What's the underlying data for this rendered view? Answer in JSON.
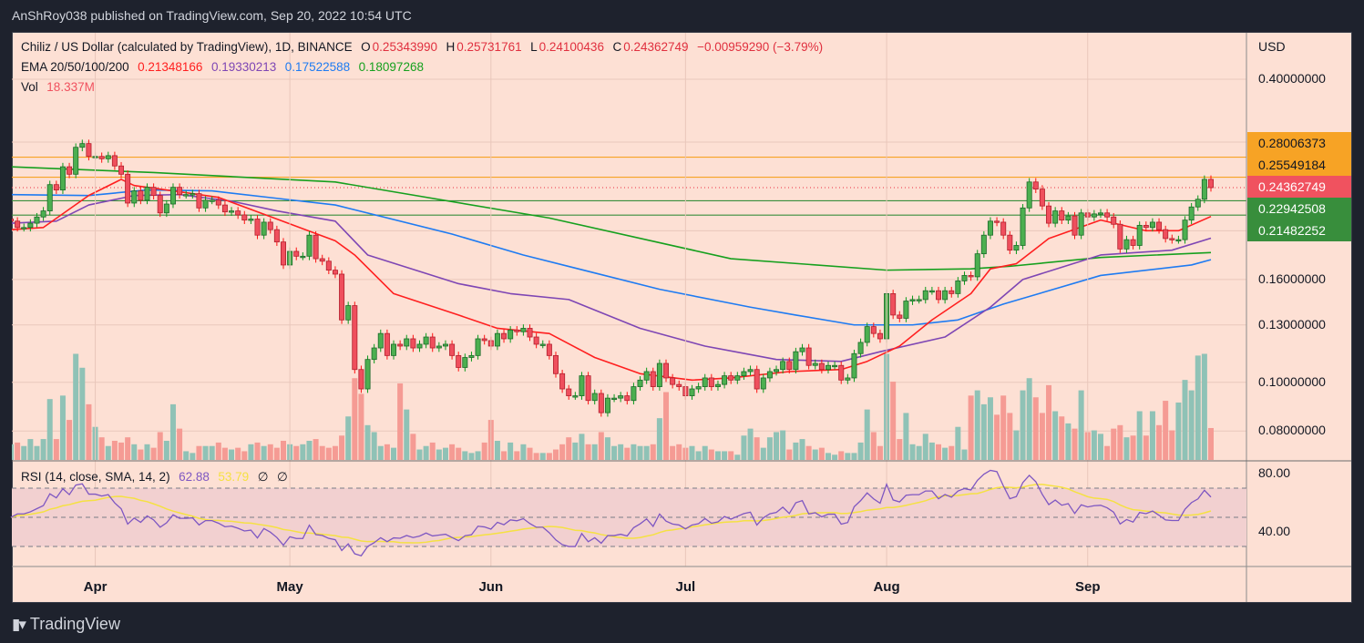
{
  "header": {
    "publisher_line": "AnShRoy038 published on TradingView.com, Sep 20, 2022 10:54 UTC"
  },
  "legend": {
    "symbol": "Chiliz / US Dollar (calculated by TradingView), 1D, BINANCE",
    "o_label": "O",
    "o": "0.25343990",
    "h_label": "H",
    "h": "0.25731761",
    "l_label": "L",
    "l": "0.24100436",
    "c_label": "C",
    "c": "0.24362749",
    "change": "−0.00959290 (−3.79%)",
    "ema_label": "EMA 20/50/100/200",
    "ema_values": [
      "0.21348166",
      "0.19330213",
      "0.17522588",
      "0.18097268"
    ],
    "vol_label": "Vol",
    "vol_value": "18.337M"
  },
  "rsi_legend": {
    "label": "RSI (14, close, SMA, 14, 2)",
    "rsi": "62.88",
    "sma": "53.79",
    "extra1": "∅",
    "extra2": "∅"
  },
  "price_axis": {
    "currency": "USD",
    "ticks": [
      "0.40000000",
      "0.16000000",
      "0.13000000",
      "0.10000000",
      "0.08000000"
    ]
  },
  "price_labels": [
    {
      "value": "0.28006373",
      "bg": "#f7a325",
      "fg": "#131722"
    },
    {
      "value": "0.25549184",
      "bg": "#f7a325",
      "fg": "#131722"
    },
    {
      "value": "0.24362749",
      "bg": "#f0525f",
      "fg": "#ffffff"
    },
    {
      "value": "0.22942508",
      "bg": "#388e3c",
      "fg": "#ffffff"
    },
    {
      "value": "0.21482252",
      "bg": "#388e3c",
      "fg": "#ffffff"
    }
  ],
  "rsi_axis": {
    "ticks": [
      "80.00",
      "40.00"
    ]
  },
  "time_axis": [
    {
      "label": "Apr",
      "day_index": 13
    },
    {
      "label": "May",
      "day_index": 43
    },
    {
      "label": "Jun",
      "day_index": 74
    },
    {
      "label": "Jul",
      "day_index": 104
    },
    {
      "label": "Aug",
      "day_index": 135
    },
    {
      "label": "Sep",
      "day_index": 166
    }
  ],
  "footer": {
    "brand": "TradingView",
    "logo_glyph": "17"
  },
  "colors": {
    "up": "#4caf50",
    "down": "#ef4f5d",
    "up_vol": "#8fc2b6",
    "down_vol": "#f59b94",
    "ema20": "#ff1f1f",
    "ema50": "#7e46b4",
    "ema100": "#1e7bf2",
    "ema200": "#16a01e",
    "rsi": "#7e57c2",
    "rsi_sma": "#f5e142"
  },
  "chart_data": {
    "type": "candlestick",
    "title": "Chiliz / US Dollar, 1D, BINANCE",
    "yscale": "log",
    "ylim": [
      0.0698,
      0.497
    ],
    "closes": [
      0.209,
      0.203,
      0.203,
      0.207,
      0.213,
      0.219,
      0.247,
      0.241,
      0.268,
      0.259,
      0.293,
      0.298,
      0.281,
      0.281,
      0.278,
      0.282,
      0.269,
      0.259,
      0.227,
      0.24,
      0.23,
      0.244,
      0.235,
      0.217,
      0.226,
      0.244,
      0.236,
      0.236,
      0.237,
      0.222,
      0.23,
      0.23,
      0.225,
      0.218,
      0.219,
      0.215,
      0.21,
      0.211,
      0.196,
      0.208,
      0.201,
      0.19,
      0.171,
      0.182,
      0.178,
      0.178,
      0.196,
      0.176,
      0.174,
      0.167,
      0.164,
      0.133,
      0.142,
      0.106,
      0.097,
      0.111,
      0.117,
      0.125,
      0.113,
      0.119,
      0.118,
      0.122,
      0.117,
      0.119,
      0.123,
      0.117,
      0.118,
      0.119,
      0.113,
      0.107,
      0.112,
      0.113,
      0.122,
      0.121,
      0.118,
      0.125,
      0.122,
      0.127,
      0.126,
      0.128,
      0.123,
      0.119,
      0.119,
      0.113,
      0.104,
      0.097,
      0.094,
      0.094,
      0.103,
      0.092,
      0.095,
      0.087,
      0.093,
      0.093,
      0.094,
      0.092,
      0.098,
      0.101,
      0.105,
      0.098,
      0.109,
      0.102,
      0.099,
      0.098,
      0.094,
      0.097,
      0.098,
      0.102,
      0.098,
      0.099,
      0.103,
      0.101,
      0.103,
      0.105,
      0.106,
      0.097,
      0.102,
      0.105,
      0.106,
      0.11,
      0.106,
      0.115,
      0.117,
      0.108,
      0.109,
      0.106,
      0.108,
      0.108,
      0.101,
      0.102,
      0.114,
      0.12,
      0.129,
      0.125,
      0.122,
      0.15,
      0.136,
      0.134,
      0.145,
      0.146,
      0.146,
      0.152,
      0.152,
      0.146,
      0.152,
      0.15,
      0.159,
      0.163,
      0.162,
      0.18,
      0.196,
      0.209,
      0.208,
      0.196,
      0.183,
      0.187,
      0.222,
      0.25,
      0.242,
      0.224,
      0.207,
      0.219,
      0.21,
      0.214,
      0.196,
      0.217,
      0.213,
      0.216,
      0.217,
      0.213,
      0.206,
      0.184,
      0.192,
      0.187,
      0.205,
      0.203,
      0.208,
      0.201,
      0.193,
      0.192,
      0.192,
      0.21,
      0.223,
      0.231,
      0.253,
      0.2436
    ],
    "volumes_m": [
      9,
      10,
      8,
      12,
      8,
      12,
      35,
      12,
      37,
      23,
      61,
      53,
      32,
      19,
      13,
      8,
      11,
      10,
      13,
      9,
      6,
      9,
      7,
      16,
      11,
      32,
      18,
      5,
      4,
      8,
      8,
      8,
      10,
      7,
      6,
      7,
      5,
      9,
      10,
      8,
      9,
      7,
      11,
      9,
      8,
      9,
      11,
      12,
      8,
      7,
      8,
      14,
      25,
      47,
      38,
      20,
      16,
      8,
      9,
      7,
      44,
      29,
      15,
      6,
      8,
      10,
      6,
      7,
      9,
      7,
      5,
      4,
      5,
      10,
      23,
      11,
      5,
      10,
      5,
      9,
      7,
      4,
      4,
      4,
      6,
      9,
      13,
      10,
      15,
      9,
      9,
      16,
      13,
      8,
      9,
      7,
      9,
      8,
      8,
      9,
      24,
      39,
      8,
      9,
      7,
      8,
      5,
      8,
      6,
      5,
      5,
      5,
      3,
      14,
      18,
      13,
      7,
      13,
      16,
      17,
      6,
      10,
      12,
      8,
      6,
      7,
      4,
      3,
      5,
      4,
      4,
      10,
      29,
      16,
      8,
      61,
      45,
      12,
      27,
      9,
      8,
      15,
      10,
      9,
      7,
      8,
      19,
      6,
      37,
      40,
      32,
      36,
      26,
      37,
      27,
      17,
      40,
      47,
      36,
      27,
      43,
      28,
      25,
      21,
      18,
      40,
      16,
      17,
      15,
      8,
      18,
      20,
      13,
      14,
      28,
      14,
      28,
      20,
      34,
      17,
      33,
      46,
      40,
      60,
      61,
      18.337
    ],
    "ema": {
      "ema20": [
        [
          0,
          0.201
        ],
        [
          5,
          0.203
        ],
        [
          12,
          0.235
        ],
        [
          17,
          0.253
        ],
        [
          19,
          0.246
        ],
        [
          26,
          0.239
        ],
        [
          32,
          0.233
        ],
        [
          41,
          0.211
        ],
        [
          50,
          0.191
        ],
        [
          53,
          0.179
        ],
        [
          59,
          0.15
        ],
        [
          69,
          0.136
        ],
        [
          75,
          0.128
        ],
        [
          83,
          0.125
        ],
        [
          90,
          0.112
        ],
        [
          97,
          0.104
        ],
        [
          105,
          0.101
        ],
        [
          111,
          0.102
        ],
        [
          120,
          0.105
        ],
        [
          128,
          0.106
        ],
        [
          132,
          0.11
        ],
        [
          137,
          0.118
        ],
        [
          142,
          0.133
        ],
        [
          148,
          0.15
        ],
        [
          151,
          0.168
        ],
        [
          155,
          0.172
        ],
        [
          160,
          0.193
        ],
        [
          168,
          0.21
        ],
        [
          175,
          0.2
        ],
        [
          180,
          0.2
        ],
        [
          185,
          0.2135
        ]
      ],
      "ema50": [
        [
          0,
          0.207
        ],
        [
          7,
          0.209
        ],
        [
          12,
          0.225
        ],
        [
          19,
          0.235
        ],
        [
          26,
          0.236
        ],
        [
          34,
          0.229
        ],
        [
          41,
          0.219
        ],
        [
          50,
          0.209
        ],
        [
          55,
          0.179
        ],
        [
          69,
          0.157
        ],
        [
          77,
          0.15
        ],
        [
          86,
          0.146
        ],
        [
          97,
          0.128
        ],
        [
          107,
          0.118
        ],
        [
          118,
          0.111
        ],
        [
          128,
          0.11
        ],
        [
          134,
          0.115
        ],
        [
          144,
          0.123
        ],
        [
          151,
          0.141
        ],
        [
          156,
          0.16
        ],
        [
          168,
          0.179
        ],
        [
          179,
          0.183
        ],
        [
          185,
          0.1933
        ]
      ],
      "ema100": [
        [
          0,
          0.236
        ],
        [
          12,
          0.235
        ],
        [
          21,
          0.241
        ],
        [
          31,
          0.24
        ],
        [
          41,
          0.232
        ],
        [
          50,
          0.225
        ],
        [
          68,
          0.197
        ],
        [
          79,
          0.179
        ],
        [
          100,
          0.153
        ],
        [
          114,
          0.141
        ],
        [
          121,
          0.136
        ],
        [
          130,
          0.13
        ],
        [
          139,
          0.13
        ],
        [
          146,
          0.133
        ],
        [
          153,
          0.143
        ],
        [
          168,
          0.163
        ],
        [
          182,
          0.171
        ],
        [
          185,
          0.1752
        ]
      ],
      "ema200": [
        [
          0,
          0.268
        ],
        [
          22,
          0.261
        ],
        [
          50,
          0.25
        ],
        [
          83,
          0.212
        ],
        [
          111,
          0.176
        ],
        [
          135,
          0.167
        ],
        [
          148,
          0.168
        ],
        [
          154,
          0.17
        ],
        [
          168,
          0.177
        ],
        [
          185,
          0.181
        ]
      ]
    },
    "hlines": [
      {
        "price": 0.28006373,
        "color": "#f7a325",
        "style": "solid"
      },
      {
        "price": 0.25549184,
        "color": "#f7a325",
        "style": "solid"
      },
      {
        "price": 0.24362749,
        "color": "#f0525f",
        "style": "dotted"
      },
      {
        "price": 0.22942508,
        "color": "#388e3c",
        "style": "solid"
      },
      {
        "price": 0.21482252,
        "color": "#388e3c",
        "style": "solid"
      }
    ],
    "grid_prices": [
      0.4,
      0.3,
      0.2,
      0.16,
      0.13,
      0.1,
      0.08
    ],
    "rsi": {
      "period": 14,
      "sma_period": 14,
      "ylim": [
        16,
        89
      ],
      "bands": [
        70,
        50,
        30
      ],
      "ticks": [
        80,
        40
      ]
    }
  }
}
